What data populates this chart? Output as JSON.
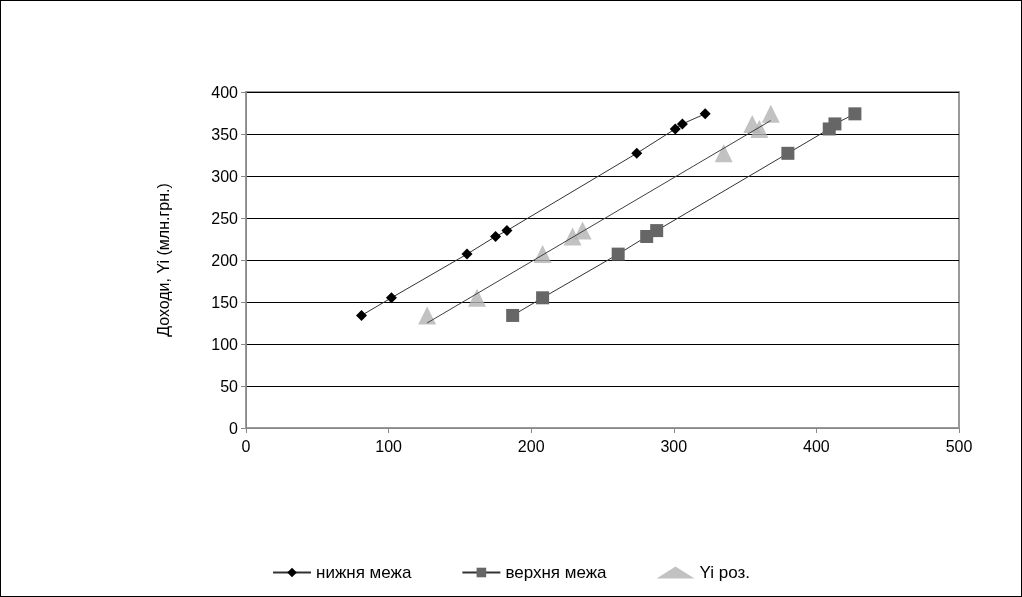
{
  "chart_data": {
    "type": "line",
    "ylabel": "Доходи, Yi (млн.грн.)",
    "xlim": [
      0,
      500
    ],
    "xticks": [
      0,
      100,
      200,
      300,
      400,
      500
    ],
    "ylim": [
      0,
      400
    ],
    "yticks": [
      0,
      50,
      100,
      150,
      200,
      250,
      300,
      350,
      400
    ],
    "grid": "y",
    "legend": "bottom",
    "series": [
      {
        "name": "нижня межа",
        "color": "#000000",
        "marker": "diamond",
        "x": [
          81,
          102,
          155,
          175,
          183,
          274,
          301,
          306,
          322
        ],
        "values": [
          134,
          155,
          207,
          228,
          235,
          327,
          356,
          362,
          374
        ]
      },
      {
        "name": "верхня межа",
        "color": "#666666",
        "marker": "square",
        "x": [
          187,
          208,
          261,
          281,
          288,
          380,
          409,
          413,
          427
        ],
        "values": [
          134,
          155,
          207,
          228,
          235,
          327,
          356,
          362,
          374
        ]
      },
      {
        "name": "Yi роз.",
        "type": "scatter",
        "color": "#b3b3b3",
        "marker": "triangle",
        "x": [
          127,
          162,
          208,
          229,
          236,
          335,
          360,
          355,
          368
        ],
        "values": [
          134,
          155,
          207,
          228,
          235,
          327,
          356,
          362,
          374
        ]
      },
      {
        "type": "line",
        "color": "#404040",
        "marker": "none",
        "x": [
          127,
          368
        ],
        "values": [
          125,
          366
        ]
      }
    ]
  }
}
